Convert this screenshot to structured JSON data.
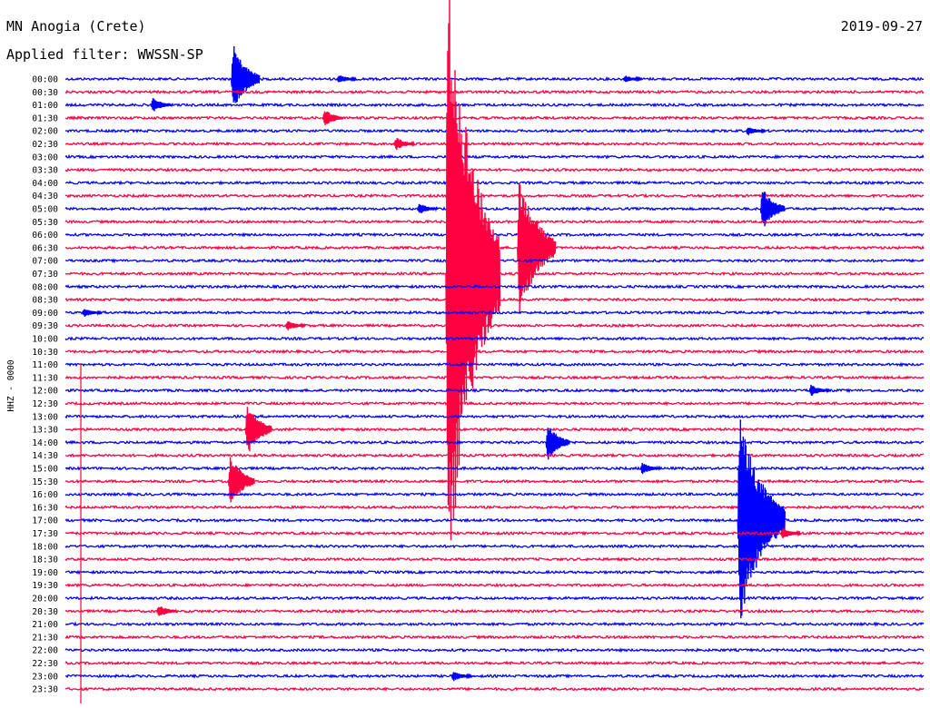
{
  "header": {
    "station": "MN Anogia (Crete)",
    "filter": "Applied filter: WWSSN-SP",
    "date": "2019-09-27"
  },
  "chart_data": {
    "type": "line",
    "title": "MN Anogia (Crete)",
    "channel_label": "HHZ - 0000",
    "trace_colors": [
      "#0000ff",
      "#ff0040"
    ],
    "times": [
      "00:00",
      "00:30",
      "01:00",
      "01:30",
      "02:00",
      "02:30",
      "03:00",
      "03:30",
      "04:00",
      "04:30",
      "05:00",
      "05:30",
      "06:00",
      "06:30",
      "07:00",
      "07:30",
      "08:00",
      "08:30",
      "09:00",
      "09:30",
      "10:00",
      "10:30",
      "11:00",
      "11:30",
      "12:00",
      "12:30",
      "13:00",
      "13:30",
      "14:00",
      "14:30",
      "15:00",
      "15:30",
      "16:00",
      "16:30",
      "17:00",
      "17:30",
      "18:00",
      "18:30",
      "19:00",
      "19:30",
      "20:00",
      "20:30",
      "21:00",
      "21:30",
      "22:00",
      "22:30",
      "23:00",
      "23:30"
    ],
    "minutes_per_line": 30,
    "events": [
      {
        "line": "00:00",
        "minute": 5.8,
        "amplitude": 45,
        "color": "#0000ff"
      },
      {
        "line": "00:00",
        "minute": 9.5,
        "amplitude": 6,
        "color": "#0000ff"
      },
      {
        "line": "00:00",
        "minute": 19.5,
        "amplitude": 5,
        "color": "#0000ff"
      },
      {
        "line": "01:00",
        "minute": 3.0,
        "amplitude": 10,
        "color": "#0000ff"
      },
      {
        "line": "01:30",
        "minute": 9.0,
        "amplitude": 12,
        "color": "#ff0040"
      },
      {
        "line": "02:00",
        "minute": 23.8,
        "amplitude": 6,
        "color": "#0000ff"
      },
      {
        "line": "02:30",
        "minute": 11.5,
        "amplitude": 9,
        "color": "#ff0040"
      },
      {
        "line": "05:00",
        "minute": 12.3,
        "amplitude": 8,
        "color": "#0000ff"
      },
      {
        "line": "05:00",
        "minute": 24.3,
        "amplitude": 28,
        "color": "#0000ff"
      },
      {
        "line": "06:30",
        "minute": 15.8,
        "amplitude": 90,
        "color": "#ff0040"
      },
      {
        "line": "07:30",
        "minute": 13.3,
        "amplitude": 380,
        "color": "#ff0040"
      },
      {
        "line": "09:00",
        "minute": 0.6,
        "amplitude": 6,
        "color": "#0000ff"
      },
      {
        "line": "09:30",
        "minute": 7.7,
        "amplitude": 7,
        "color": "#ff0040"
      },
      {
        "line": "12:00",
        "minute": 26.0,
        "amplitude": 8,
        "color": "#0000ff"
      },
      {
        "line": "13:30",
        "minute": 6.3,
        "amplitude": 35,
        "color": "#ff0040"
      },
      {
        "line": "14:00",
        "minute": 16.8,
        "amplitude": 25,
        "color": "#0000ff"
      },
      {
        "line": "15:00",
        "minute": 20.1,
        "amplitude": 8,
        "color": "#0000ff"
      },
      {
        "line": "15:30",
        "minute": 5.7,
        "amplitude": 35,
        "color": "#ff0040"
      },
      {
        "line": "17:00",
        "minute": 23.5,
        "amplitude": 130,
        "color": "#0000ff"
      },
      {
        "line": "17:30",
        "minute": 25.0,
        "amplitude": 8,
        "color": "#ff0040"
      },
      {
        "line": "20:30",
        "minute": 3.2,
        "amplitude": 9,
        "color": "#ff0040"
      },
      {
        "line": "23:00",
        "minute": 13.5,
        "amplitude": 7,
        "color": "#0000ff"
      }
    ],
    "ylabel": "HHZ - 0000"
  }
}
